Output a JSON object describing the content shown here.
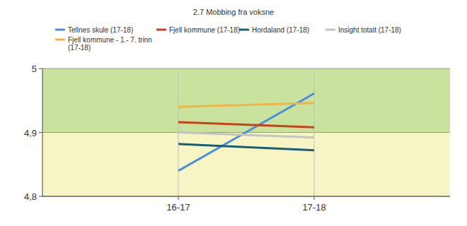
{
  "chart_data": {
    "type": "line",
    "title": "2.7 Mobbing fra voksne",
    "categories": [
      "16-17",
      "17-18"
    ],
    "series": [
      {
        "name": "Tellnes skule (17-18)",
        "color": "#4a8fdc",
        "values": [
          4.84,
          4.961
        ]
      },
      {
        "name": "Fjell kommune (17-18)",
        "color": "#c8421c",
        "values": [
          4.916,
          4.908
        ]
      },
      {
        "name": "Hordaland (17-18)",
        "color": "#185e78",
        "values": [
          4.882,
          4.872
        ]
      },
      {
        "name": "Insight totalt (17-18)",
        "color": "#c4c4c4",
        "values": [
          4.9,
          4.892
        ]
      },
      {
        "name": "Fjell kommune - 1.- 7. trinn (17-18)",
        "color": "#f2b444",
        "values": [
          4.94,
          4.946
        ]
      }
    ],
    "bands": [
      {
        "from": 4.8,
        "to": 4.9,
        "color": "#f7f5c4"
      },
      {
        "from": 4.9,
        "to": 5,
        "color": "#c9e29d"
      }
    ],
    "ylim": [
      4.8,
      5
    ],
    "yticks": [
      {
        "value": 4.8,
        "label": "4,8"
      },
      {
        "value": 4.9,
        "label": "4,9"
      },
      5
    ],
    "grid": true,
    "legend": "top"
  }
}
